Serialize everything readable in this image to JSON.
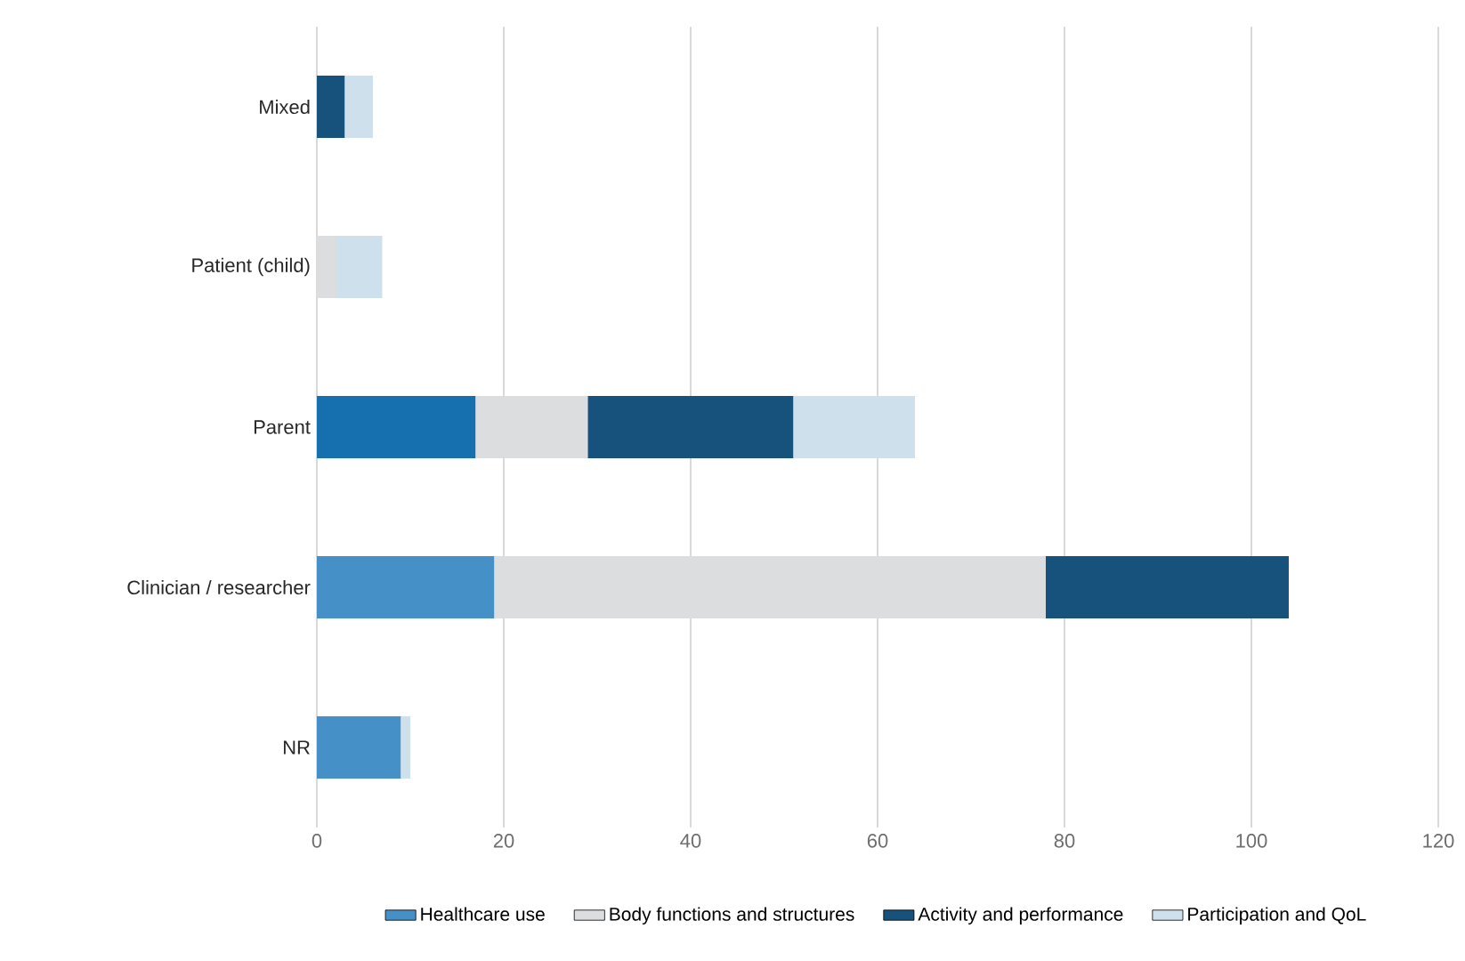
{
  "chart_data": {
    "type": "bar",
    "orientation": "horizontal",
    "stacked": true,
    "categories": [
      "Mixed",
      "Patient (child)",
      "Parent",
      "Clinician / researcher",
      "NR"
    ],
    "series": [
      {
        "name": "Healthcare use",
        "color": "#4690c8",
        "colors": [
          "#4690c8",
          "#4690c8",
          "#1670b0",
          "#4690c8",
          "#4690c8"
        ],
        "values": [
          null,
          null,
          17,
          19,
          9
        ]
      },
      {
        "name": "Body functions and structures",
        "color": "#dcdddf",
        "values": [
          null,
          2,
          12,
          59,
          null
        ]
      },
      {
        "name": "Activity and performance",
        "color": "#17527c",
        "values": [
          3,
          null,
          22,
          26,
          null
        ]
      },
      {
        "name": "Participation and QoL",
        "color": "#cfe0ed",
        "values": [
          3,
          5,
          13,
          null,
          1
        ]
      }
    ],
    "xlim": [
      0,
      120
    ],
    "xticks": [
      0,
      20,
      40,
      60,
      80,
      100,
      120
    ],
    "grid": "x",
    "legend": "bottom"
  }
}
